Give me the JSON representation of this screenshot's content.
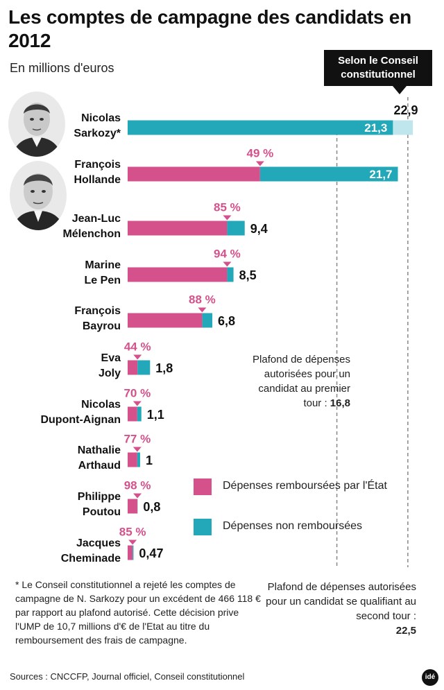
{
  "title": "Les comptes de campagne des candidats en 2012",
  "subtitle": "En millions d'euros",
  "callout": "Selon le Conseil constitutionnel",
  "colors": {
    "reimbursed": "#d4518c",
    "not_reimbursed": "#22a8b8",
    "sarkozy_excess": "#bfe6ec",
    "dash": "#888888"
  },
  "chart_data": {
    "type": "bar",
    "orientation": "horizontal",
    "stacked": true,
    "title": "Les comptes de campagne des candidats en 2012",
    "ylabel": "En millions d'euros",
    "xlim": [
      0,
      22.9
    ],
    "categories": [
      "Nicolas Sarkozy*",
      "François Hollande",
      "Jean-Luc Mélenchon",
      "Marine Le Pen",
      "François Bayrou",
      "Eva Joly",
      "Nicolas Dupont-Aignan",
      "Nathalie Arthaud",
      "Philippe Poutou",
      "Jacques Cheminade"
    ],
    "name_lines": [
      [
        "Nicolas",
        "Sarkozy*"
      ],
      [
        "François",
        "Hollande"
      ],
      [
        "Jean-Luc",
        "Mélenchon"
      ],
      [
        "Marine",
        "Le Pen"
      ],
      [
        "François",
        "Bayrou"
      ],
      [
        "Eva",
        "Joly"
      ],
      [
        "Nicolas",
        "Dupont-Aignan"
      ],
      [
        "Nathalie",
        "Arthaud"
      ],
      [
        "Philippe",
        "Poutou"
      ],
      [
        "Jacques",
        "Cheminade"
      ]
    ],
    "totals": [
      21.3,
      21.7,
      9.4,
      8.5,
      6.8,
      1.8,
      1.1,
      1,
      0.8,
      0.47
    ],
    "total_labels": [
      "21,3",
      "21,7",
      "9,4",
      "8,5",
      "6,8",
      "1,8",
      "1,1",
      "1",
      "0,8",
      "0,47"
    ],
    "reimbursed_share": [
      0,
      0.49,
      0.85,
      0.94,
      0.88,
      0.44,
      0.7,
      0.77,
      0.98,
      0.85
    ],
    "share_labels": [
      "",
      "49 %",
      "85 %",
      "94 %",
      "88 %",
      "44 %",
      "70 %",
      "77 %",
      "98 %",
      "85 %"
    ],
    "sarkozy_revised_total": 22.9,
    "sarkozy_revised_label": "22,9",
    "series": [
      {
        "name": "Dépenses remboursées par l'État"
      },
      {
        "name": "Dépenses non remboursées"
      }
    ],
    "reference_lines": [
      {
        "value": 16.8,
        "label": "16,8"
      },
      {
        "value": 22.5,
        "label": "22,5"
      }
    ]
  },
  "legend": {
    "reimbursed": "Dépenses remboursées par l'État",
    "not_reimbursed": "Dépenses non remboursées"
  },
  "note_first_round": {
    "text": "Plafond de dépenses autorisées pour un candidat au premier tour : ",
    "value": "16,8"
  },
  "note_second_round": {
    "text": "Plafond de dépenses autorisées pour un candidat se qualifiant au second tour :",
    "value": "22,5"
  },
  "footnote": "* Le Conseil constitutionnel a rejeté les comptes de campagne de N. Sarkozy pour un excédent de 466 118 € par rapport au plafond autorisé. Cette décision prive l'UMP de 10,7 millions d'€ de l'Etat au titre du remboursement des frais de campagne.",
  "sources": "Sources : CNCCFP, Journal officiel, Conseil constitutionnel",
  "logo": "idé"
}
